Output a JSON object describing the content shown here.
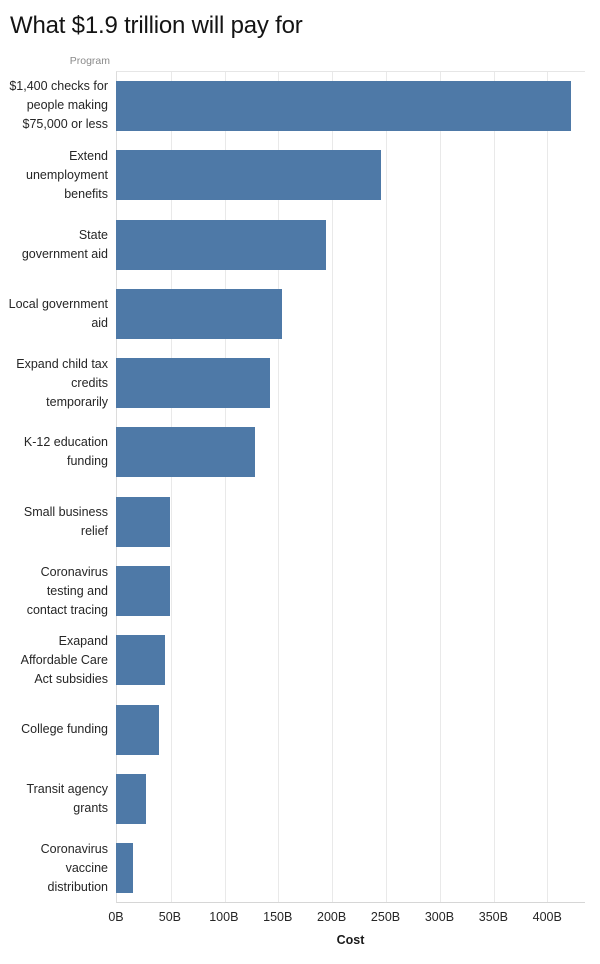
{
  "header": {
    "title": "What $1.9 trillion will pay for"
  },
  "chart": {
    "row_axis_label": "Program",
    "x_axis_label": "Cost",
    "bar_color": "#4E79A7",
    "gridline_color": "#e9e9e9",
    "x_max": 435,
    "ticks": [
      {
        "label": "0B",
        "value": 0
      },
      {
        "label": "50B",
        "value": 50
      },
      {
        "label": "100B",
        "value": 100
      },
      {
        "label": "150B",
        "value": 150
      },
      {
        "label": "200B",
        "value": 200
      },
      {
        "label": "250B",
        "value": 250
      },
      {
        "label": "300B",
        "value": 300
      },
      {
        "label": "350B",
        "value": 350
      },
      {
        "label": "400B",
        "value": 400
      }
    ],
    "rows": [
      {
        "label": "$1,400 checks for people making $75,000 or less",
        "lines": [
          "$1,400 checks for",
          "people making",
          "$75,000 or less"
        ],
        "value": 422
      },
      {
        "label": "Extend unemployment benefits",
        "lines": [
          "Extend",
          "unemployment",
          "benefits"
        ],
        "value": 246
      },
      {
        "label": "State government aid",
        "lines": [
          "State",
          "government aid"
        ],
        "value": 195
      },
      {
        "label": "Local government aid",
        "lines": [
          "Local government",
          "aid"
        ],
        "value": 154
      },
      {
        "label": "Expand child tax credits temporarily",
        "lines": [
          "Expand child tax",
          "credits",
          "temporarily"
        ],
        "value": 143
      },
      {
        "label": "K-12 education funding",
        "lines": [
          "K-12 education",
          "funding"
        ],
        "value": 129
      },
      {
        "label": "Small business relief",
        "lines": [
          "Small business",
          "relief"
        ],
        "value": 50
      },
      {
        "label": "Coronavirus testing and contact tracing",
        "lines": [
          "Coronavirus",
          "testing and",
          "contact tracing"
        ],
        "value": 50
      },
      {
        "label": "Exapand Affordable Care Act subsidies",
        "lines": [
          "Exapand",
          "Affordable Care",
          "Act subsidies"
        ],
        "value": 45
      },
      {
        "label": "College funding",
        "lines": [
          "College funding"
        ],
        "value": 40
      },
      {
        "label": "Transit agency grants",
        "lines": [
          "Transit agency",
          "grants"
        ],
        "value": 28
      },
      {
        "label": "Coronavirus vaccine distribution",
        "lines": [
          "Coronavirus",
          "vaccine",
          "distribution"
        ],
        "value": 16
      }
    ]
  },
  "chart_data": {
    "type": "bar",
    "orientation": "horizontal",
    "title": "What $1.9 trillion will pay for",
    "categories": [
      "$1,400 checks for people making $75,000 or less",
      "Extend unemployment benefits",
      "State government aid",
      "Local government aid",
      "Expand child tax credits temporarily",
      "K-12 education funding",
      "Small business relief",
      "Coronavirus testing and contact tracing",
      "Exapand Affordable Care Act subsidies",
      "College funding",
      "Transit agency grants",
      "Coronavirus vaccine distribution"
    ],
    "values": [
      422,
      246,
      195,
      154,
      143,
      129,
      50,
      50,
      45,
      40,
      28,
      16
    ],
    "unit": "B",
    "xlabel": "Cost",
    "ylabel": "Program",
    "xlim": [
      0,
      435
    ],
    "xticks": [
      "0B",
      "50B",
      "100B",
      "150B",
      "200B",
      "250B",
      "300B",
      "350B",
      "400B"
    ],
    "grid": "vertical",
    "legend": "none",
    "bar_color": "#4E79A7"
  }
}
